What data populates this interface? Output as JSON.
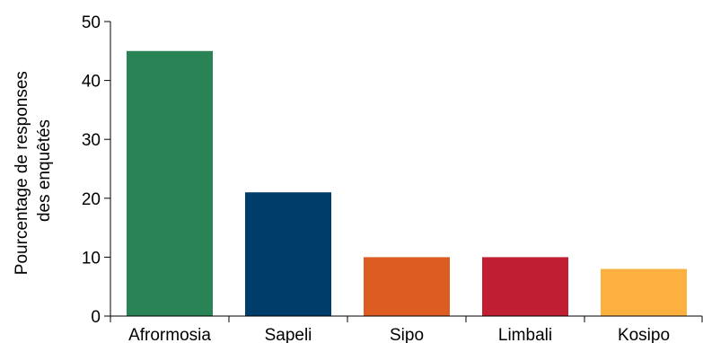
{
  "chart_data": {
    "type": "bar",
    "categories": [
      "Afrormosia",
      "Sapeli",
      "Sipo",
      "Limbali",
      "Kosipo"
    ],
    "values": [
      45,
      21,
      10,
      10,
      8
    ],
    "colors": [
      "#2a8354",
      "#003d6b",
      "#dc5c22",
      "#c01f33",
      "#fbb040"
    ],
    "ylabel_lines": [
      "Pourcentage de responses",
      "des enquêtés"
    ],
    "ylim": [
      0,
      50
    ],
    "yticks": [
      0,
      10,
      20,
      30,
      40,
      50
    ],
    "grid": false,
    "legend": "none"
  }
}
